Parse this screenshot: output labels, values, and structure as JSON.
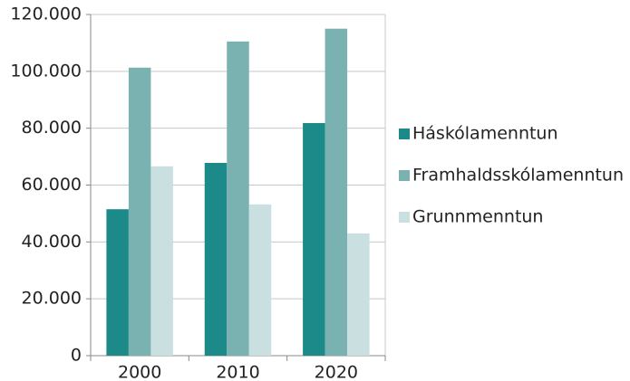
{
  "chart_data": {
    "type": "bar",
    "categories": [
      "2000",
      "2010",
      "2020"
    ],
    "series": [
      {
        "name": "Háskólamenntun",
        "color": "#1b8a88",
        "values": [
          51500,
          67800,
          81800
        ]
      },
      {
        "name": "Framhaldsskólamenntun",
        "color": "#7ab1b1",
        "values": [
          101300,
          110500,
          115000
        ]
      },
      {
        "name": "Grunnmenntun",
        "color": "#c9dfe0",
        "values": [
          66600,
          53200,
          43000
        ]
      }
    ],
    "ylim": [
      0,
      120000
    ],
    "yticks": [
      0,
      {
        "value": 20000,
        "label": "20.000"
      },
      {
        "value": 40000,
        "label": "40.000"
      },
      {
        "value": 60000,
        "label": "60.000"
      },
      {
        "value": 80000,
        "label": "80.000"
      },
      {
        "value": 100000,
        "label": "100.000"
      },
      {
        "value": 120000,
        "label": "120.000"
      }
    ],
    "grid": true,
    "legend": "right"
  }
}
